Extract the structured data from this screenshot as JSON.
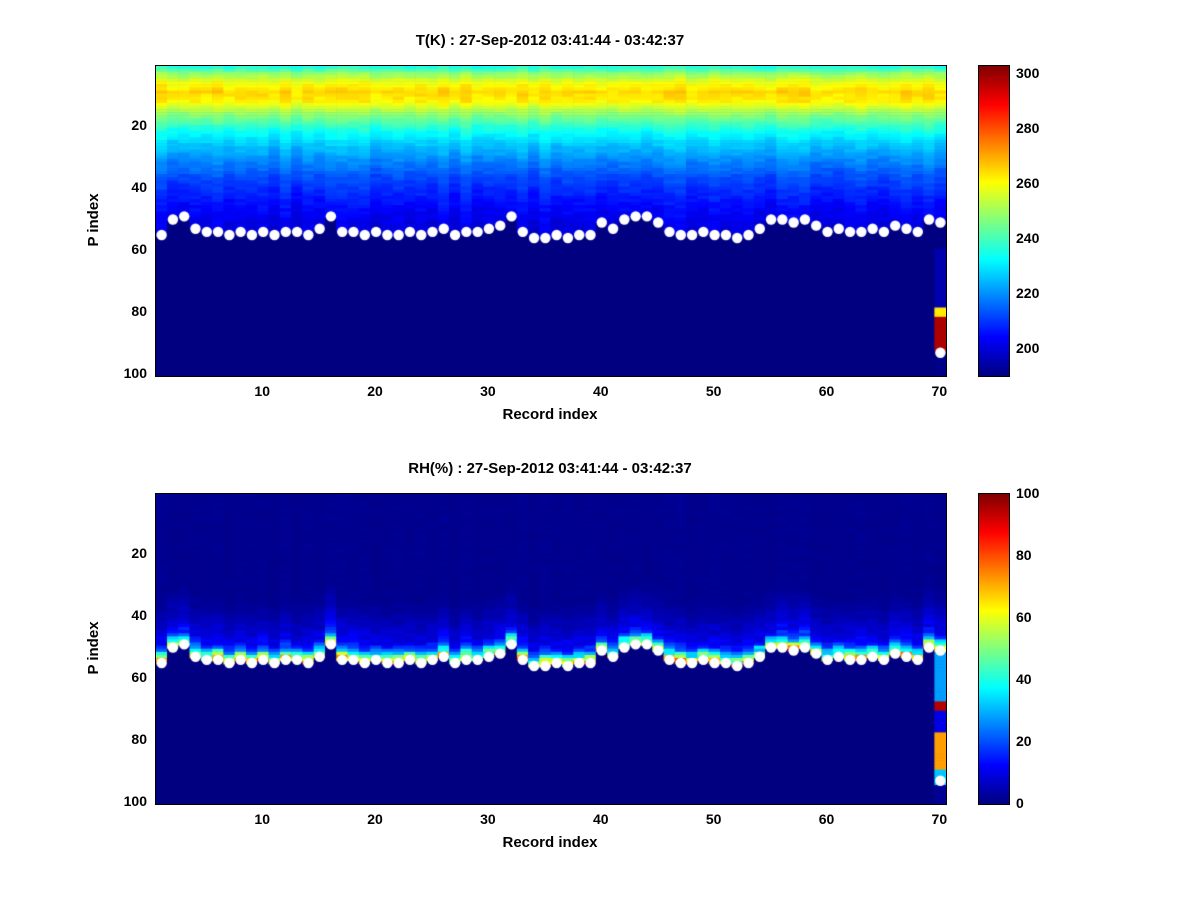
{
  "colors": {
    "background": "#ffffff",
    "frame": "#000000",
    "marker": "#ffffff",
    "text": "#000000"
  },
  "chart_data": [
    {
      "type": "heatmap",
      "variable": "T(K)",
      "title": "T(K) : 27-Sep-2012 03:41:44 - 03:42:37",
      "xlabel": "Record index",
      "ylabel": "P index",
      "x_axis_range": [
        0.5,
        70.5
      ],
      "y_axis_range": [
        0.5,
        100.5
      ],
      "y_axis_reversed": true,
      "n_records": 70,
      "n_levels": 100,
      "x_ticks": [
        10,
        20,
        30,
        40,
        50,
        60,
        70
      ],
      "y_ticks": [
        20,
        40,
        60,
        80,
        100
      ],
      "colormap": "jet",
      "colorbar_ticks": [
        200,
        220,
        240,
        260,
        280,
        300
      ],
      "value_range": [
        190,
        303
      ],
      "no_data_value": 190,
      "profile_breakpoints": {
        "p": [
          1,
          3,
          6,
          9,
          12,
          15,
          18,
          22,
          27,
          32,
          38,
          44,
          50,
          56
        ],
        "value": [
          236,
          248,
          259,
          265,
          262,
          252,
          243,
          233,
          225,
          218,
          211,
          206,
          202,
          199
        ]
      },
      "noise": {
        "cell": 3.5,
        "column": 4
      },
      "surface_p_by_record": [
        55,
        50,
        49,
        53,
        54,
        54,
        55,
        54,
        55,
        54,
        55,
        54,
        54,
        55,
        53,
        49,
        54,
        54,
        55,
        54,
        55,
        55,
        54,
        55,
        54,
        53,
        55,
        54,
        54,
        53,
        52,
        49,
        54,
        56,
        56,
        55,
        56,
        55,
        55,
        51,
        53,
        50,
        49,
        49,
        51,
        54,
        55,
        55,
        54,
        55,
        55,
        56,
        55,
        53,
        50,
        50,
        51,
        50,
        52,
        54,
        53,
        54,
        54,
        53,
        54,
        52,
        53,
        54,
        50,
        51
      ],
      "extra_markers": [
        {
          "record": 70,
          "p": 93
        }
      ],
      "last_record_segments": [
        [
          60,
          78,
          195
        ],
        [
          79,
          81,
          263
        ],
        [
          82,
          92,
          298
        ],
        [
          93,
          100,
          191
        ]
      ]
    },
    {
      "type": "heatmap",
      "variable": "RH(%)",
      "title": "RH(%) : 27-Sep-2012 03:41:44 - 03:42:37",
      "xlabel": "Record index",
      "ylabel": "P index",
      "x_axis_range": [
        0.5,
        70.5
      ],
      "y_axis_range": [
        0.5,
        100.5
      ],
      "y_axis_reversed": true,
      "n_records": 70,
      "n_levels": 100,
      "x_ticks": [
        10,
        20,
        30,
        40,
        50,
        60,
        70
      ],
      "y_ticks": [
        20,
        40,
        60,
        80,
        100
      ],
      "colormap": "jet",
      "colorbar_ticks": [
        0,
        20,
        40,
        60,
        80,
        100
      ],
      "value_range": [
        0,
        100
      ],
      "no_data_value": 0,
      "surface_offset_profile": {
        "offset": [
          0,
          1,
          2,
          3,
          4,
          5,
          6,
          8,
          10,
          13,
          16,
          20,
          100
        ],
        "value": [
          65,
          55,
          42,
          30,
          19,
          14,
          11,
          9,
          7,
          5,
          3,
          1.5,
          1.5
        ]
      },
      "noise": {
        "cell": 0.5,
        "column": 0.35
      },
      "surface_p_by_record": [
        55,
        50,
        49,
        53,
        54,
        54,
        55,
        54,
        55,
        54,
        55,
        54,
        54,
        55,
        53,
        49,
        54,
        54,
        55,
        54,
        55,
        55,
        54,
        55,
        54,
        53,
        55,
        54,
        54,
        53,
        52,
        49,
        54,
        56,
        56,
        55,
        56,
        55,
        55,
        51,
        53,
        50,
        49,
        49,
        51,
        54,
        55,
        55,
        54,
        55,
        55,
        56,
        55,
        53,
        50,
        50,
        51,
        50,
        52,
        54,
        53,
        54,
        54,
        53,
        54,
        52,
        53,
        54,
        50,
        51
      ],
      "extra_markers": [
        {
          "record": 70,
          "p": 93
        }
      ],
      "last_record_segments": [
        [
          52,
          67,
          28
        ],
        [
          68,
          70,
          95
        ],
        [
          71,
          77,
          10
        ],
        [
          78,
          89,
          72
        ],
        [
          90,
          94,
          32
        ],
        [
          95,
          100,
          2
        ]
      ]
    }
  ]
}
